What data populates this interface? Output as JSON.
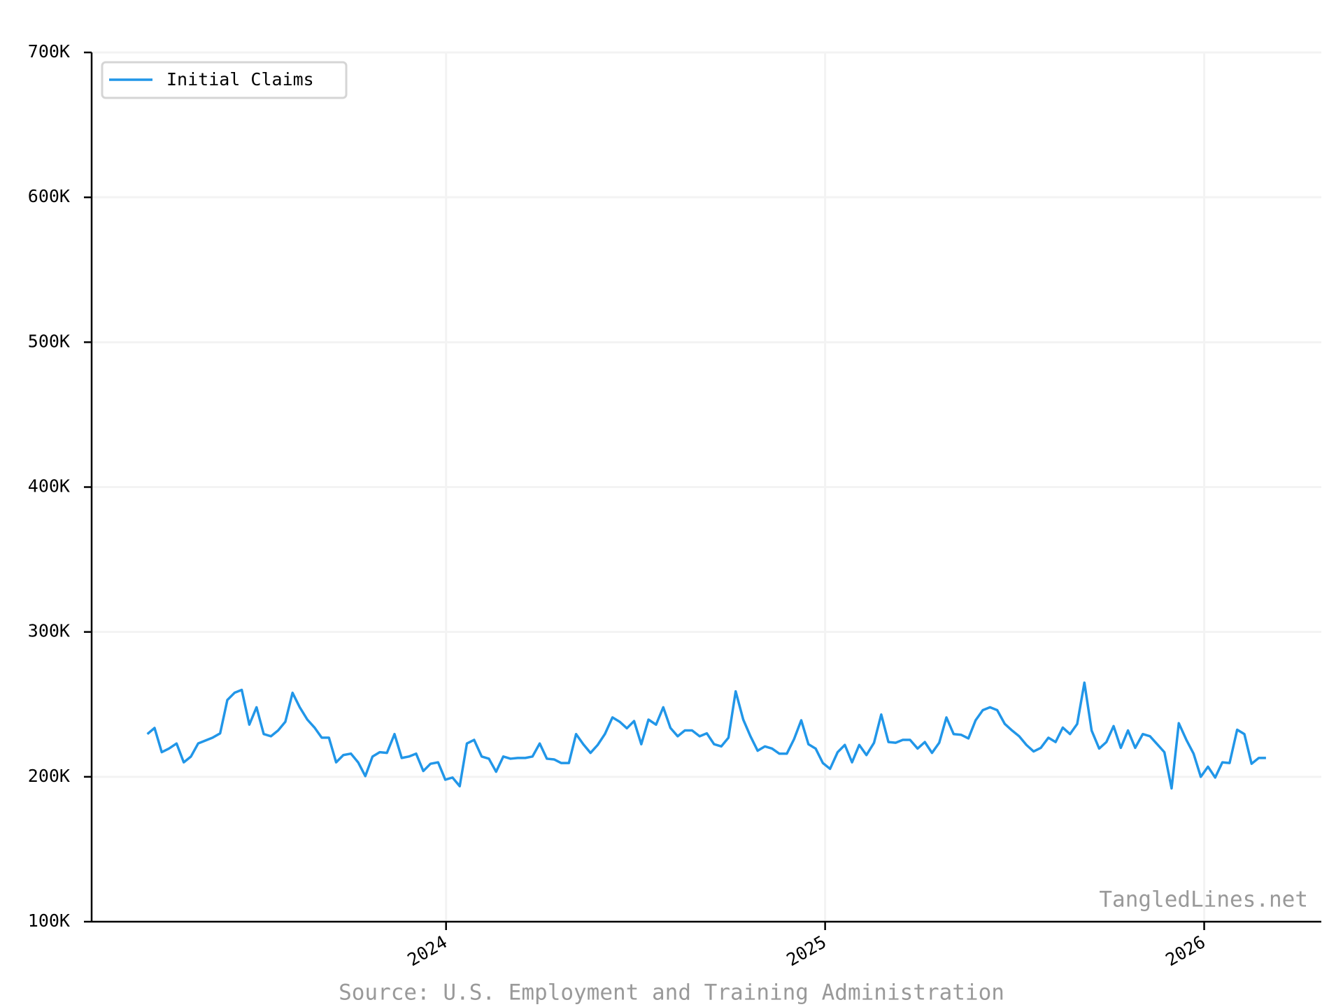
{
  "chart_data": {
    "type": "line",
    "source": "Source: U.S. Employment and Training Administration",
    "watermark": "TangledLines.net",
    "legend": "upper left",
    "grid": true,
    "xlim": [
      2023.065,
      2026.309
    ],
    "xticks": [
      2024,
      2025,
      2026
    ],
    "ylim": [
      100000,
      700000
    ],
    "yticks": [
      {
        "value": 100000,
        "label": "100K"
      },
      {
        "value": 200000,
        "label": "200K"
      },
      {
        "value": 300000,
        "label": "300K"
      },
      {
        "value": 400000,
        "label": "400K"
      },
      {
        "value": 500000,
        "label": "500K"
      },
      {
        "value": 600000,
        "label": "600K"
      },
      {
        "value": 700000,
        "label": "700K"
      }
    ],
    "x": [
      2023.212,
      2023.231,
      2023.25,
      2023.269,
      2023.289,
      2023.308,
      2023.327,
      2023.346,
      2023.365,
      2023.384,
      2023.404,
      2023.423,
      2023.442,
      2023.461,
      2023.481,
      2023.5,
      2023.519,
      2023.538,
      2023.557,
      2023.576,
      2023.595,
      2023.614,
      2023.634,
      2023.653,
      2023.672,
      2023.691,
      2023.71,
      2023.729,
      2023.749,
      2023.768,
      2023.787,
      2023.806,
      2023.825,
      2023.844,
      2023.864,
      2023.883,
      2023.902,
      2023.921,
      2023.94,
      2023.959,
      2023.979,
      2023.998,
      2024.017,
      2024.036,
      2024.055,
      2024.074,
      2024.094,
      2024.113,
      2024.132,
      2024.151,
      2024.17,
      2024.189,
      2024.209,
      2024.228,
      2024.247,
      2024.266,
      2024.285,
      2024.304,
      2024.324,
      2024.343,
      2024.362,
      2024.381,
      2024.4,
      2024.419,
      2024.439,
      2024.458,
      2024.477,
      2024.496,
      2024.515,
      2024.534,
      2024.554,
      2024.573,
      2024.592,
      2024.611,
      2024.63,
      2024.649,
      2024.669,
      2024.688,
      2024.707,
      2024.726,
      2024.745,
      2024.764,
      2024.784,
      2024.803,
      2024.822,
      2024.841,
      2024.86,
      2024.879,
      2024.899,
      2024.918,
      2024.937,
      2024.956,
      2024.975,
      2024.994,
      2025.013,
      2025.033,
      2025.052,
      2025.071,
      2025.09,
      2025.109,
      2025.129,
      2025.148,
      2025.167,
      2025.186,
      2025.205,
      2025.224,
      2025.244,
      2025.263,
      2025.282,
      2025.301,
      2025.32,
      2025.339,
      2025.359,
      2025.378,
      2025.397,
      2025.416,
      2025.435,
      2025.454,
      2025.474,
      2025.493,
      2025.512,
      2025.531,
      2025.55,
      2025.569,
      2025.589,
      2025.608,
      2025.627,
      2025.646,
      2025.665,
      2025.684,
      2025.703,
      2025.723,
      2025.742,
      2025.761,
      2025.78,
      2025.799,
      2025.818,
      2025.838,
      2025.857,
      2025.876,
      2025.895,
      2025.914,
      2025.933,
      2025.953,
      2025.972,
      2025.991,
      2026.01,
      2026.029,
      2026.048,
      2026.067,
      2026.087,
      2026.106,
      2026.125,
      2026.144,
      2026.163
    ],
    "series": [
      {
        "name": "Initial Claims",
        "color": "#2196e8",
        "values": [
          229500,
          233700,
          217000,
          219500,
          223000,
          210000,
          214000,
          223000,
          225000,
          227000,
          230000,
          253000,
          258000,
          260000,
          236000,
          248000,
          229500,
          228000,
          232000,
          238000,
          258000,
          248000,
          239500,
          234000,
          227000,
          227000,
          210000,
          215000,
          216000,
          210000,
          200500,
          214000,
          217000,
          216500,
          229500,
          213000,
          214000,
          216000,
          204000,
          209000,
          210000,
          198000,
          199500,
          193500,
          223000,
          225500,
          214000,
          212500,
          203500,
          214000,
          212500,
          213000,
          213000,
          214000,
          223000,
          212500,
          212000,
          209500,
          209500,
          229500,
          222500,
          216500,
          222000,
          229500,
          241000,
          238000,
          233500,
          238500,
          222500,
          239500,
          236000,
          248000,
          233700,
          228000,
          232000,
          232000,
          228000,
          230000,
          222500,
          221000,
          227000,
          259000,
          239500,
          228000,
          218000,
          221000,
          219500,
          216000,
          216000,
          226000,
          239000,
          222500,
          219500,
          209500,
          205500,
          217000,
          222000,
          210000,
          222000,
          215000,
          223500,
          243000,
          224000,
          223500,
          225500,
          225500,
          219500,
          224000,
          216500,
          223500,
          241000,
          229500,
          229000,
          226500,
          239000,
          246000,
          248000,
          246000,
          236500,
          232000,
          228000,
          222000,
          217500,
          220000,
          227000,
          224000,
          234000,
          229500,
          236500,
          265000,
          232000,
          219500,
          224000,
          235000,
          220000,
          232000,
          220000,
          229500,
          228000,
          222500,
          217000,
          192000,
          237000,
          225500,
          216000,
          200000,
          207000,
          199500,
          210000,
          209500,
          232500,
          229500,
          209000,
          213000,
          213000
        ]
      }
    ]
  }
}
